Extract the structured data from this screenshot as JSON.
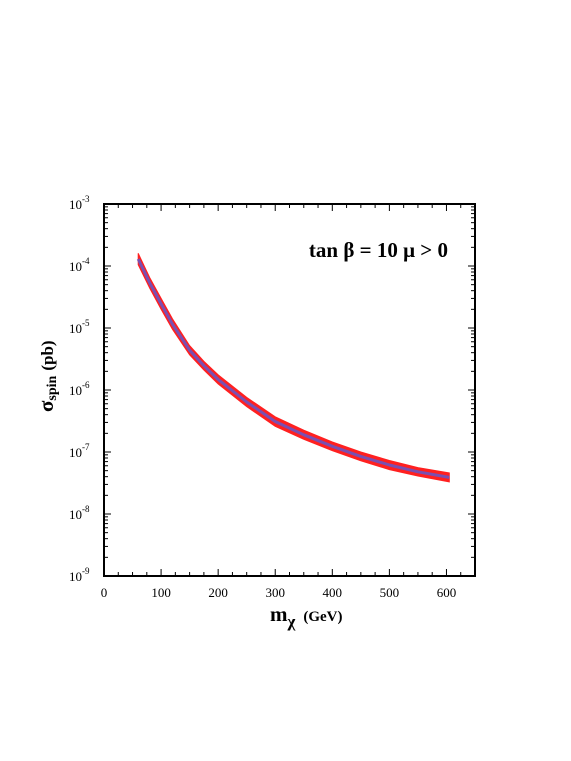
{
  "chart_data": {
    "type": "area",
    "annotation": "tan β = 10  μ > 0",
    "xlabel": {
      "main": "m",
      "sub": "χ",
      "unit": "(GeV)"
    },
    "ylabel": {
      "main": "σ",
      "sub": "spin",
      "unit": "(pb)"
    },
    "xlim": [
      0,
      650
    ],
    "ylim_exp": [
      -9,
      -3
    ],
    "y_scale": "log",
    "x_tick_labels": [
      "0",
      "100",
      "200",
      "300",
      "400",
      "500",
      "600"
    ],
    "y_tick_labels": [
      {
        "base": "10",
        "exp": "-9"
      },
      {
        "base": "10",
        "exp": "-8"
      },
      {
        "base": "10",
        "exp": "-7"
      },
      {
        "base": "10",
        "exp": "-6"
      },
      {
        "base": "10",
        "exp": "-5"
      },
      {
        "base": "10",
        "exp": "-4"
      },
      {
        "base": "10",
        "exp": "-3"
      }
    ],
    "grid": false,
    "band": {
      "name": "",
      "fill": "#ff2020",
      "inner": "#7a4fb0",
      "x": [
        60,
        80,
        100,
        120,
        150,
        175,
        200,
        250,
        300,
        350,
        400,
        450,
        500,
        550,
        605
      ],
      "y_upper": [
        0.00016,
        6.5e-05,
        3e-05,
        1.4e-05,
        5.2e-06,
        2.9e-06,
        1.75e-06,
        7.6e-07,
        3.7e-07,
        2.25e-07,
        1.45e-07,
        1e-07,
        7.3e-08,
        5.6e-08,
        4.6e-08
      ],
      "y_lower": [
        0.000105,
        4.4e-05,
        2e-05,
        9.5e-06,
        3.7e-06,
        2.1e-06,
        1.25e-06,
        5.4e-07,
        2.6e-07,
        1.6e-07,
        1.05e-07,
        7.2e-08,
        5.2e-08,
        4.1e-08,
        3.3e-08
      ]
    }
  }
}
